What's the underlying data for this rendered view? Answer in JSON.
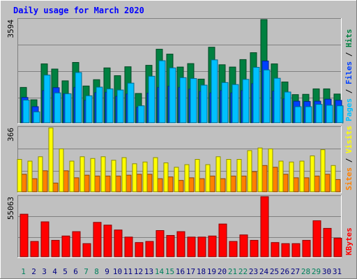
{
  "title": "Daily usage for March 2020",
  "colors": {
    "background": "#c0c0c0",
    "title": "#0000ff",
    "hits": "#008040",
    "files": "#0040ff",
    "pages": "#00c0ff",
    "visits": "#ffff00",
    "sites": "#ff8000",
    "kbytes": "#ff0000",
    "weekend_day": "#00805c",
    "weekday_day": "#000080"
  },
  "chart_data": [
    {
      "type": "bar",
      "name": "hits-files-pages",
      "max_label": "3594",
      "ymax": 3594,
      "legend": [
        "Pages",
        "Files",
        "Hits"
      ],
      "categories": [
        "1",
        "2",
        "3",
        "4",
        "5",
        "6",
        "7",
        "8",
        "9",
        "10",
        "11",
        "12",
        "13",
        "14",
        "15",
        "16",
        "17",
        "18",
        "19",
        "20",
        "21",
        "22",
        "23",
        "24",
        "25",
        "26",
        "27",
        "28",
        "29",
        "30",
        "31"
      ],
      "series": [
        {
          "name": "Hits",
          "values": [
            1230,
            800,
            2050,
            1870,
            1460,
            2100,
            1280,
            1500,
            1910,
            1640,
            1950,
            1020,
            2000,
            2560,
            2390,
            1940,
            2060,
            1520,
            2630,
            2020,
            1940,
            2200,
            2440,
            3594,
            2050,
            1420,
            980,
            990,
            1180,
            1180,
            1000
          ]
        },
        {
          "name": "Files",
          "values": [
            880,
            560,
            1120,
            1220,
            1010,
            1230,
            780,
            1050,
            1060,
            920,
            1000,
            540,
            1030,
            1230,
            1270,
            1230,
            1170,
            1090,
            1040,
            1120,
            1040,
            1120,
            1360,
            2150,
            1100,
            830,
            750,
            740,
            750,
            820,
            780
          ]
        },
        {
          "name": "Pages",
          "values": [
            790,
            380,
            1660,
            1040,
            1010,
            1750,
            940,
            1240,
            1180,
            1140,
            1380,
            590,
            1620,
            2160,
            1910,
            1570,
            1540,
            1310,
            2190,
            1400,
            1330,
            1510,
            1930,
            1840,
            1550,
            1070,
            560,
            560,
            640,
            610,
            590
          ]
        }
      ]
    },
    {
      "type": "bar",
      "name": "visits-sites",
      "max_label": "366",
      "ymax": 366,
      "legend": [
        "Sites",
        "Visits"
      ],
      "categories": [
        "1",
        "2",
        "3",
        "4",
        "5",
        "6",
        "7",
        "8",
        "9",
        "10",
        "11",
        "12",
        "13",
        "14",
        "15",
        "16",
        "17",
        "18",
        "19",
        "20",
        "21",
        "22",
        "23",
        "24",
        "25",
        "26",
        "27",
        "28",
        "29",
        "30",
        "31"
      ],
      "series": [
        {
          "name": "Visits",
          "values": [
            100,
            75,
            120,
            50,
            120,
            80,
            95,
            90,
            90,
            90,
            95,
            100,
            100,
            75,
            85,
            65,
            80,
            75,
            90,
            75,
            90,
            90,
            115,
            150,
            140,
            100,
            80,
            80,
            90,
            100,
            70
          ]
        },
        {
          "name": "Sites",
          "values": [
            185,
            175,
            200,
            365,
            245,
            175,
            200,
            190,
            200,
            180,
            195,
            160,
            170,
            195,
            165,
            140,
            155,
            185,
            155,
            200,
            185,
            185,
            235,
            250,
            245,
            175,
            170,
            175,
            205,
            240,
            150
          ]
        }
      ]
    },
    {
      "type": "bar",
      "name": "kbytes",
      "max_label": "55063",
      "ymax": 55063,
      "legend": [
        "KBytes"
      ],
      "categories": [
        "1",
        "2",
        "3",
        "4",
        "5",
        "6",
        "7",
        "8",
        "9",
        "10",
        "11",
        "12",
        "13",
        "14",
        "15",
        "16",
        "17",
        "18",
        "19",
        "20",
        "21",
        "22",
        "23",
        "24",
        "25",
        "26",
        "27",
        "28",
        "29",
        "30",
        "31"
      ],
      "series": [
        {
          "name": "KBytes",
          "values": [
            39000,
            14000,
            32000,
            15000,
            19000,
            23000,
            12000,
            31500,
            29000,
            24500,
            18000,
            13000,
            14000,
            24000,
            19500,
            23000,
            18000,
            18000,
            19000,
            30000,
            14000,
            20000,
            15000,
            55063,
            13000,
            12000,
            12000,
            15000,
            33000,
            26000,
            17000
          ]
        }
      ]
    }
  ],
  "weekend_days": [
    "1",
    "7",
    "8",
    "14",
    "15",
    "21",
    "22",
    "28",
    "29"
  ]
}
